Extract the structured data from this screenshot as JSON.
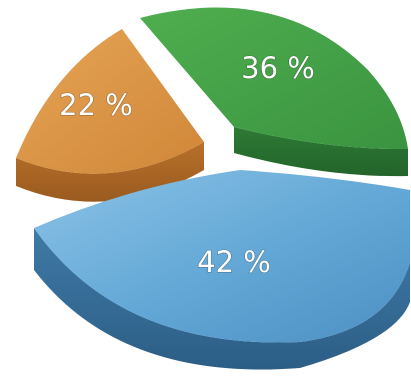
{
  "chart_data": {
    "type": "pie",
    "style": "3d-exploded",
    "values": [
      42,
      36,
      22
    ],
    "labels": [
      "42 %",
      "36 %",
      "22 %"
    ],
    "colors": {
      "blue": "#5fa2cf",
      "green": "#3d9b46",
      "orange": "#d8903f"
    }
  }
}
